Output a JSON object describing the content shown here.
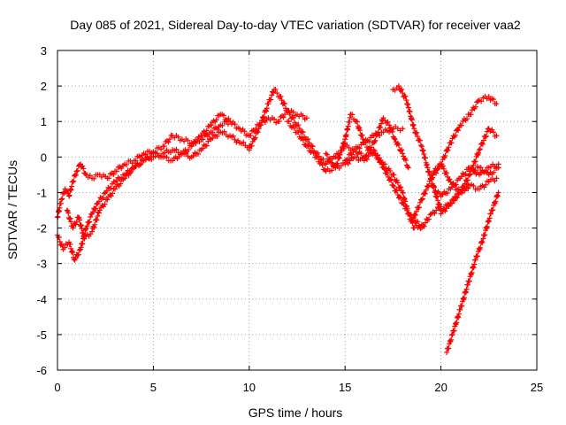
{
  "chart_data": {
    "type": "scatter",
    "title": "Day 085 of 2021, Sidereal Day-to-day VTEC variation (SDTVAR) for receiver vaa2",
    "xlabel": "GPS time / hours",
    "ylabel": "SDTVAR / TECUs",
    "xlim": [
      0,
      25
    ],
    "ylim": [
      -6,
      3
    ],
    "x_ticks": [
      "0",
      "5",
      "10",
      "15",
      "20",
      "25"
    ],
    "y_ticks": [
      "-6",
      "-5",
      "-4",
      "-3",
      "-2",
      "-1",
      "0",
      "1",
      "2",
      "3"
    ],
    "grid": true,
    "marker": "+",
    "color": "#ff0000",
    "series": [
      {
        "x": [
          0.0,
          0.2,
          0.4,
          0.6,
          0.8,
          1.0,
          1.2,
          1.5,
          1.8,
          2.2,
          2.6,
          3.0,
          3.5,
          4.0,
          4.5,
          5.0,
          5.5,
          6.0,
          6.5,
          7.0,
          7.5,
          8.0,
          8.5,
          9.0,
          9.5,
          10.0,
          10.5,
          11.0,
          11.5,
          12.0,
          12.5,
          13.0
        ],
        "y": [
          -1.7,
          -1.2,
          -0.9,
          -1.1,
          -0.7,
          -0.4,
          -0.2,
          -0.5,
          -0.6,
          -0.5,
          -0.6,
          -0.4,
          -0.2,
          -0.1,
          0.1,
          0.15,
          0.3,
          0.6,
          0.5,
          0.4,
          0.5,
          0.7,
          0.9,
          1.0,
          0.8,
          0.6,
          0.9,
          1.1,
          1.0,
          1.3,
          1.2,
          1.1
        ]
      },
      {
        "x": [
          0.0,
          0.3,
          0.6,
          0.9,
          1.2,
          1.5,
          1.8,
          2.1,
          2.5,
          3.0,
          3.5,
          4.0,
          4.5,
          5.0,
          5.5,
          6.0,
          6.5,
          7.0,
          7.5,
          8.0,
          8.5,
          9.0,
          9.5,
          10.0
        ],
        "y": [
          -2.2,
          -2.6,
          -2.4,
          -2.9,
          -2.6,
          -2.0,
          -1.6,
          -1.3,
          -1.0,
          -0.7,
          -0.5,
          -0.3,
          -0.1,
          0.0,
          0.1,
          0.2,
          0.1,
          0.0,
          0.2,
          0.5,
          0.7,
          0.6,
          0.4,
          0.3
        ]
      },
      {
        "x": [
          0.5,
          0.8,
          1.1,
          1.4,
          1.8,
          2.2,
          2.6,
          3.0,
          3.5,
          4.0,
          4.5,
          5.0,
          5.5,
          6.0,
          6.5,
          7.0,
          7.5,
          8.0,
          8.5,
          9.0
        ],
        "y": [
          -1.5,
          -2.0,
          -1.7,
          -2.3,
          -2.1,
          -1.5,
          -1.2,
          -0.9,
          -0.6,
          -0.3,
          -0.1,
          0.1,
          0.0,
          -0.1,
          0.1,
          0.3,
          0.6,
          0.9,
          1.2,
          1.0
        ]
      },
      {
        "x": [
          10.0,
          10.5,
          11.0,
          11.3,
          11.6,
          12.0,
          12.5,
          13.0,
          13.5,
          14.0,
          14.5,
          15.0,
          15.5,
          16.0,
          16.5,
          17.0,
          17.5,
          18.0
        ],
        "y": [
          0.2,
          0.8,
          1.5,
          1.9,
          1.7,
          1.3,
          0.9,
          0.5,
          0.1,
          -0.2,
          0.0,
          0.3,
          0.2,
          0.4,
          0.6,
          0.7,
          0.8,
          0.8
        ]
      },
      {
        "x": [
          12.0,
          12.5,
          13.0,
          13.5,
          14.0,
          14.5,
          15.0,
          15.3,
          15.6,
          16.0,
          16.5,
          17.0,
          17.5,
          18.0,
          18.3,
          18.6,
          19.0
        ],
        "y": [
          1.0,
          0.7,
          0.3,
          0.0,
          -0.4,
          -0.3,
          0.5,
          1.2,
          1.0,
          0.4,
          0.1,
          -0.2,
          -0.5,
          -1.0,
          -1.6,
          -2.0,
          -1.9
        ]
      },
      {
        "x": [
          14.0,
          14.5,
          15.0,
          15.5,
          16.0,
          16.5,
          17.0,
          17.5,
          18.0,
          18.5,
          19.0,
          19.5,
          20.0
        ],
        "y": [
          0.1,
          -0.3,
          -0.2,
          0.0,
          -0.1,
          0.2,
          -0.3,
          -0.8,
          -1.3,
          -1.7,
          -2.0,
          -1.6,
          -1.4
        ]
      },
      {
        "x": [
          15.0,
          15.5,
          16.0,
          16.5,
          17.0,
          17.3,
          17.6,
          18.0,
          18.3
        ],
        "y": [
          -0.1,
          0.2,
          0.0,
          0.4,
          1.1,
          0.9,
          0.5,
          0.1,
          -0.3
        ]
      },
      {
        "x": [
          17.5,
          17.8,
          18.2,
          18.6,
          19.0,
          19.3,
          19.7,
          20.0,
          20.5,
          21.0,
          21.5
        ],
        "y": [
          1.9,
          2.0,
          1.6,
          0.8,
          0.3,
          -0.3,
          -1.0,
          -1.5,
          -1.3,
          -1.0,
          -0.8
        ]
      },
      {
        "x": [
          19.5,
          20.0,
          20.5,
          21.0,
          21.5,
          22.0,
          22.5,
          22.9
        ],
        "y": [
          -0.5,
          -0.2,
          0.4,
          0.9,
          1.2,
          1.6,
          1.7,
          1.5
        ]
      },
      {
        "x": [
          18.5,
          19.0,
          19.5,
          20.0,
          20.5,
          21.0,
          21.5,
          22.0,
          22.5,
          22.9
        ],
        "y": [
          -1.8,
          -1.2,
          -0.6,
          -0.2,
          -0.7,
          -1.0,
          -0.5,
          0.2,
          0.8,
          0.6
        ]
      },
      {
        "x": [
          19.5,
          20.0,
          20.5,
          21.0,
          21.5,
          22.0,
          22.5,
          23.0
        ],
        "y": [
          -0.8,
          -1.1,
          -0.9,
          -0.6,
          -0.3,
          -0.5,
          -0.3,
          -0.2
        ]
      },
      {
        "x": [
          20.0,
          20.5,
          21.0,
          21.5,
          22.0,
          22.5,
          22.9
        ],
        "y": [
          -1.6,
          -1.3,
          -1.0,
          -0.8,
          -0.9,
          -0.7,
          -0.6
        ]
      },
      {
        "x": [
          20.3,
          20.6,
          21.0,
          21.4,
          21.8,
          22.2,
          22.6,
          23.0
        ],
        "y": [
          -5.5,
          -5.0,
          -4.3,
          -3.6,
          -2.9,
          -2.3,
          -1.6,
          -1.0
        ]
      },
      {
        "x": [
          21.5,
          22.0,
          22.5,
          23.0
        ],
        "y": [
          -0.4,
          -0.3,
          -0.5,
          -0.3
        ]
      }
    ]
  }
}
